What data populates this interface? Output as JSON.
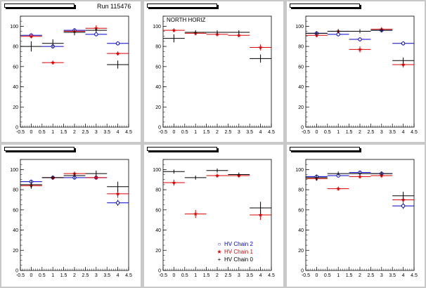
{
  "colors": {
    "canvas_bg": "#c8c8c8",
    "pad_bg": "#ffffff",
    "chain2": "#0000cc",
    "chain1": "#dd0000",
    "chain0": "#000000"
  },
  "run_label": "Run 115476",
  "chart_data": [
    {
      "type": "scatter",
      "title": "",
      "annotation": "",
      "xlim": [
        -0.5,
        4.5
      ],
      "ylim": [
        0,
        110
      ],
      "xticks": [
        "-0.5",
        "0",
        "0.5",
        "1",
        "1.5",
        "2",
        "2.5",
        "3",
        "3.5",
        "4",
        "4.5"
      ],
      "yticks": [
        "0",
        "20",
        "40",
        "60",
        "80",
        "100"
      ],
      "series": [
        {
          "name": "HV Chain 2",
          "color": "#0000cc",
          "marker": "circle",
          "x": [
            0,
            1,
            2,
            3,
            4
          ],
          "y": [
            91,
            80,
            96,
            92,
            83
          ],
          "err": [
            2,
            2,
            2,
            2,
            2
          ]
        },
        {
          "name": "HV Chain 1",
          "color": "#dd0000",
          "marker": "star",
          "x": [
            0,
            1,
            2,
            3,
            4
          ],
          "y": [
            90,
            64,
            95,
            98,
            73
          ],
          "err": [
            2,
            2,
            2,
            3,
            2
          ]
        },
        {
          "name": "HV Chain 0",
          "color": "#000000",
          "marker": "cross",
          "x": [
            0,
            1,
            2,
            3,
            4
          ],
          "y": [
            80,
            83,
            94,
            96,
            62
          ],
          "err": [
            5,
            4,
            3,
            2,
            4
          ]
        }
      ]
    },
    {
      "type": "scatter",
      "title": "",
      "annotation": "NORTH HORIZ",
      "xlim": [
        -0.5,
        4.5
      ],
      "ylim": [
        0,
        110
      ],
      "xticks": [
        "-0.5",
        "0",
        "0.5",
        "1",
        "1.5",
        "2",
        "2.5",
        "3",
        "3.5",
        "4",
        "4.5"
      ],
      "yticks": [
        "0",
        "20",
        "40",
        "60",
        "80",
        "100"
      ],
      "series": [
        {
          "name": "HV Chain 2",
          "color": "#0000cc",
          "marker": "circle",
          "x": [],
          "y": [],
          "err": []
        },
        {
          "name": "HV Chain 1",
          "color": "#dd0000",
          "marker": "star",
          "x": [
            0,
            1,
            2,
            3,
            4
          ],
          "y": [
            96,
            93,
            92,
            91,
            79
          ],
          "err": [
            2,
            2,
            2,
            2,
            3
          ]
        },
        {
          "name": "HV Chain 0",
          "color": "#000000",
          "marker": "cross",
          "x": [
            0,
            1,
            2,
            3,
            4
          ],
          "y": [
            88,
            94,
            94,
            94,
            68
          ],
          "err": [
            4,
            2,
            2,
            2,
            4
          ]
        }
      ]
    },
    {
      "type": "scatter",
      "title": "",
      "annotation": "",
      "xlim": [
        -0.5,
        4.5
      ],
      "ylim": [
        0,
        110
      ],
      "xticks": [
        "-0.5",
        "0",
        "0.5",
        "1",
        "1.5",
        "2",
        "2.5",
        "3",
        "3.5",
        "4",
        "4.5"
      ],
      "yticks": [
        "0",
        "20",
        "40",
        "60",
        "80",
        "100"
      ],
      "series": [
        {
          "name": "HV Chain 2",
          "color": "#0000cc",
          "marker": "circle",
          "x": [
            0,
            1,
            2,
            3,
            4
          ],
          "y": [
            93,
            92,
            87,
            96,
            83
          ],
          "err": [
            2,
            2,
            2,
            2,
            2
          ]
        },
        {
          "name": "HV Chain 1",
          "color": "#dd0000",
          "marker": "star",
          "x": [
            0,
            1,
            2,
            3,
            4
          ],
          "y": [
            91,
            95,
            77,
            97,
            62
          ],
          "err": [
            2,
            2,
            3,
            2,
            3
          ]
        },
        {
          "name": "HV Chain 0",
          "color": "#000000",
          "marker": "cross",
          "x": [
            0,
            1,
            2,
            3,
            4
          ],
          "y": [
            93,
            95,
            95,
            96,
            66
          ],
          "err": [
            2,
            2,
            2,
            2,
            3
          ]
        }
      ]
    },
    {
      "type": "scatter",
      "title": "",
      "annotation": "",
      "xlim": [
        -0.5,
        4.5
      ],
      "ylim": [
        0,
        110
      ],
      "xticks": [
        "-0.5",
        "0",
        "0.5",
        "1",
        "1.5",
        "2",
        "2.5",
        "3",
        "3.5",
        "4",
        "4.5"
      ],
      "yticks": [
        "0",
        "20",
        "40",
        "60",
        "80",
        "100"
      ],
      "series": [
        {
          "name": "HV Chain 2",
          "color": "#0000cc",
          "marker": "circle",
          "x": [
            0,
            1,
            2,
            3,
            4
          ],
          "y": [
            88,
            92,
            92,
            92,
            67
          ],
          "err": [
            2,
            2,
            2,
            2,
            3
          ]
        },
        {
          "name": "HV Chain 1",
          "color": "#dd0000",
          "marker": "star",
          "x": [
            0,
            1,
            2,
            3,
            4
          ],
          "y": [
            84,
            92,
            96,
            92,
            76
          ],
          "err": [
            2,
            2,
            2,
            2,
            4
          ]
        },
        {
          "name": "HV Chain 0",
          "color": "#000000",
          "marker": "cross",
          "x": [
            0,
            1,
            2,
            3,
            4
          ],
          "y": [
            85,
            92,
            94,
            96,
            83
          ],
          "err": [
            4,
            2,
            3,
            3,
            5
          ]
        }
      ]
    },
    {
      "type": "scatter",
      "title": "",
      "annotation": "",
      "xlim": [
        -0.5,
        4.5
      ],
      "ylim": [
        0,
        110
      ],
      "xticks": [
        "-0.5",
        "0",
        "0.5",
        "1",
        "1.5",
        "2",
        "2.5",
        "3",
        "3.5",
        "4",
        "4.5"
      ],
      "yticks": [
        "0",
        "20",
        "40",
        "60",
        "80",
        "100"
      ],
      "series": [
        {
          "name": "HV Chain 2",
          "color": "#0000cc",
          "marker": "circle",
          "x": [],
          "y": [],
          "err": []
        },
        {
          "name": "HV Chain 1",
          "color": "#dd0000",
          "marker": "star",
          "x": [
            0,
            1,
            2,
            3,
            4
          ],
          "y": [
            87,
            56,
            94,
            94,
            55
          ],
          "err": [
            3,
            4,
            2,
            2,
            5
          ]
        },
        {
          "name": "HV Chain 0",
          "color": "#000000",
          "marker": "cross",
          "x": [
            0,
            1,
            2,
            3,
            4
          ],
          "y": [
            98,
            92,
            99,
            95,
            62
          ],
          "err": [
            2,
            2,
            2,
            2,
            6
          ]
        }
      ]
    },
    {
      "type": "scatter",
      "title": "",
      "annotation": "",
      "xlim": [
        -0.5,
        4.5
      ],
      "ylim": [
        0,
        110
      ],
      "xticks": [
        "-0.5",
        "0",
        "0.5",
        "1",
        "1.5",
        "2",
        "2.5",
        "3",
        "3.5",
        "4",
        "4.5"
      ],
      "yticks": [
        "0",
        "20",
        "40",
        "60",
        "80",
        "100"
      ],
      "series": [
        {
          "name": "HV Chain 2",
          "color": "#0000cc",
          "marker": "circle",
          "x": [
            0,
            1,
            2,
            3,
            4
          ],
          "y": [
            93,
            94,
            97,
            96,
            64
          ],
          "err": [
            2,
            2,
            2,
            2,
            3
          ]
        },
        {
          "name": "HV Chain 1",
          "color": "#dd0000",
          "marker": "star",
          "x": [
            0,
            1,
            2,
            3,
            4
          ],
          "y": [
            91,
            81,
            93,
            94,
            70
          ],
          "err": [
            2,
            2,
            2,
            2,
            3
          ]
        },
        {
          "name": "HV Chain 0",
          "color": "#000000",
          "marker": "cross",
          "x": [
            0,
            1,
            2,
            3,
            4
          ],
          "y": [
            92,
            96,
            96,
            96,
            74
          ],
          "err": [
            3,
            2,
            2,
            2,
            4
          ]
        }
      ]
    }
  ],
  "legend": [
    {
      "label": "HV Chain 2",
      "marker": "circle",
      "color": "#0000cc"
    },
    {
      "label": "HV Chain 1",
      "marker": "star",
      "color": "#dd0000"
    },
    {
      "label": "HV Chain 0",
      "marker": "cross",
      "color": "#000000"
    }
  ]
}
